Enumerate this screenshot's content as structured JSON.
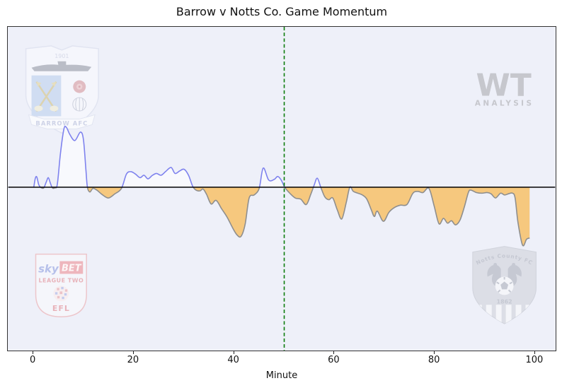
{
  "chart_data": {
    "type": "area",
    "title": "Barrow v Notts Co. Game Momentum",
    "xlabel": "Minute",
    "x_ticks": [
      0,
      20,
      40,
      60,
      80,
      100
    ],
    "xlim": [
      -5.1,
      104.1
    ],
    "ylim": [
      -2.73,
      2.68
    ],
    "grid": false,
    "legend": "none",
    "halftime_line_x": 50,
    "zero_line_y": 0,
    "series": [
      {
        "name": "momentum",
        "note": "positive = Barrow (blue), negative = Notts Co. (orange fill, gray line)",
        "points": [
          [
            0,
            0.0
          ],
          [
            0.3,
            0.15
          ],
          [
            0.6,
            0.17
          ],
          [
            1.0,
            0.04
          ],
          [
            1.5,
            -0.01
          ],
          [
            2.0,
            -0.01
          ],
          [
            2.5,
            0.09
          ],
          [
            2.9,
            0.16
          ],
          [
            3.3,
            0.07
          ],
          [
            3.7,
            -0.01
          ],
          [
            4.2,
            -0.01
          ],
          [
            4.7,
            0.05
          ],
          [
            5.3,
            0.55
          ],
          [
            6.0,
            0.97
          ],
          [
            6.5,
            1.0
          ],
          [
            7.2,
            0.88
          ],
          [
            8.2,
            0.78
          ],
          [
            9.3,
            0.92
          ],
          [
            9.9,
            0.8
          ],
          [
            10.4,
            0.3
          ],
          [
            10.7,
            0.0
          ],
          [
            11.2,
            -0.08
          ],
          [
            11.8,
            -0.02
          ],
          [
            12.6,
            -0.05
          ],
          [
            13.6,
            -0.12
          ],
          [
            14.9,
            -0.18
          ],
          [
            16.2,
            -0.11
          ],
          [
            17.5,
            -0.02
          ],
          [
            18.5,
            0.22
          ],
          [
            19.4,
            0.26
          ],
          [
            20.3,
            0.22
          ],
          [
            21.2,
            0.16
          ],
          [
            22.0,
            0.2
          ],
          [
            22.8,
            0.14
          ],
          [
            23.7,
            0.2
          ],
          [
            24.5,
            0.23
          ],
          [
            25.4,
            0.2
          ],
          [
            26.3,
            0.26
          ],
          [
            27.4,
            0.33
          ],
          [
            28.2,
            0.23
          ],
          [
            29.1,
            0.27
          ],
          [
            30.0,
            0.3
          ],
          [
            30.9,
            0.2
          ],
          [
            31.7,
            0.02
          ],
          [
            32.4,
            -0.05
          ],
          [
            33.2,
            -0.06
          ],
          [
            33.8,
            -0.03
          ],
          [
            34.5,
            -0.12
          ],
          [
            35.4,
            -0.28
          ],
          [
            36.4,
            -0.22
          ],
          [
            37.5,
            -0.36
          ],
          [
            38.6,
            -0.5
          ],
          [
            39.7,
            -0.68
          ],
          [
            40.6,
            -0.8
          ],
          [
            41.4,
            -0.82
          ],
          [
            42.2,
            -0.62
          ],
          [
            43.0,
            -0.18
          ],
          [
            44.0,
            -0.13
          ],
          [
            45.0,
            -0.02
          ],
          [
            45.8,
            0.32
          ],
          [
            46.9,
            0.12
          ],
          [
            48.0,
            0.13
          ],
          [
            48.7,
            0.18
          ],
          [
            49.4,
            0.12
          ],
          [
            50.1,
            0.0
          ],
          [
            51.1,
            -0.1
          ],
          [
            52.2,
            -0.18
          ],
          [
            53.3,
            -0.2
          ],
          [
            54.4,
            -0.29
          ],
          [
            55.3,
            -0.12
          ],
          [
            56.0,
            0.04
          ],
          [
            56.6,
            0.15
          ],
          [
            57.3,
            0.0
          ],
          [
            58.1,
            -0.16
          ],
          [
            58.9,
            -0.21
          ],
          [
            59.7,
            -0.18
          ],
          [
            60.6,
            -0.38
          ],
          [
            61.5,
            -0.53
          ],
          [
            62.4,
            -0.25
          ],
          [
            63.1,
            0.0
          ],
          [
            63.8,
            -0.07
          ],
          [
            64.7,
            -0.1
          ],
          [
            65.6,
            -0.13
          ],
          [
            66.5,
            -0.2
          ],
          [
            67.4,
            -0.38
          ],
          [
            68.0,
            -0.49
          ],
          [
            68.6,
            -0.4
          ],
          [
            69.8,
            -0.57
          ],
          [
            70.9,
            -0.42
          ],
          [
            72.0,
            -0.34
          ],
          [
            73.2,
            -0.3
          ],
          [
            74.5,
            -0.29
          ],
          [
            75.7,
            -0.1
          ],
          [
            76.7,
            -0.07
          ],
          [
            77.7,
            -0.09
          ],
          [
            78.9,
            -0.02
          ],
          [
            79.9,
            -0.3
          ],
          [
            80.9,
            -0.61
          ],
          [
            81.8,
            -0.52
          ],
          [
            82.6,
            -0.6
          ],
          [
            83.4,
            -0.56
          ],
          [
            84.2,
            -0.63
          ],
          [
            85.1,
            -0.55
          ],
          [
            86.0,
            -0.32
          ],
          [
            86.8,
            -0.08
          ],
          [
            87.3,
            -0.05
          ],
          [
            88.4,
            -0.09
          ],
          [
            89.5,
            -0.1
          ],
          [
            90.5,
            -0.09
          ],
          [
            91.3,
            -0.11
          ],
          [
            92.2,
            -0.18
          ],
          [
            93.2,
            -0.1
          ],
          [
            94.0,
            -0.13
          ],
          [
            94.8,
            -0.11
          ],
          [
            95.6,
            -0.1
          ],
          [
            96.1,
            -0.18
          ],
          [
            96.7,
            -0.6
          ],
          [
            97.6,
            -0.97
          ],
          [
            98.4,
            -0.87
          ],
          [
            99.0,
            -0.85
          ]
        ]
      }
    ],
    "colors": {
      "above_line": "#7e82ee",
      "above_fill": "#f8f9fd",
      "below_line": "#8e8e8e",
      "below_fill": "#f6c87e",
      "zero_line": "#000000",
      "halftime_line": "#0b7c0b",
      "plot_bg": "#eef0f9"
    }
  },
  "watermarks": {
    "wt": {
      "line1": "WT",
      "line2": "ANALYSIS"
    },
    "barrow": {
      "year": "1901",
      "name": "BARROW AFC"
    },
    "skybet": {
      "sky": "sky",
      "bet": "BET",
      "league": "LEAGUE TWO",
      "efl": "EFL"
    },
    "notts": {
      "name": "Notts County FC",
      "year": "1862"
    }
  }
}
